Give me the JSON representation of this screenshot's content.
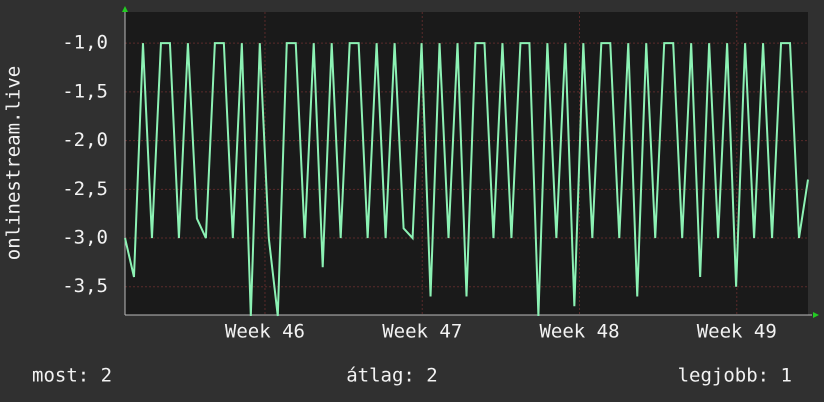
{
  "chart_data": {
    "type": "line",
    "y_label": "onlinestream.live",
    "x": [
      0,
      0.4,
      0.8,
      1.2,
      1.6,
      2,
      2.4,
      2.8,
      3.2,
      3.6,
      4,
      4.4,
      4.8,
      5.2,
      5.6,
      6,
      6.4,
      6.8,
      7.2,
      7.6,
      8,
      8.4,
      8.8,
      9.2,
      9.6,
      10,
      10.4,
      10.8,
      11.2,
      11.6,
      12,
      12.4,
      12.8,
      13.2,
      13.6,
      14,
      14.4,
      14.8,
      15.2,
      15.6,
      16,
      16.4,
      16.8,
      17.2,
      17.6,
      18,
      18.4,
      18.8,
      19.2,
      19.6,
      20,
      20.4,
      20.8,
      21.2,
      21.6,
      22,
      22.4,
      22.8,
      23.2,
      23.6,
      24,
      24.4,
      24.8,
      25.2,
      25.6,
      26,
      26.4,
      26.8,
      27.2,
      27.6,
      28,
      28.4,
      28.8,
      29.2,
      29.6,
      30,
      30.4
    ],
    "series": [
      {
        "color": "#8cf2b4",
        "values": [
          -3,
          -3.4,
          -1,
          -3,
          -1,
          -1,
          -3,
          -1,
          -2.8,
          -3,
          -1,
          -1,
          -3,
          -1,
          -3.8,
          -1,
          -3,
          -3.8,
          -1,
          -1,
          -3,
          -1,
          -3.3,
          -1,
          -3,
          -1,
          -1,
          -3,
          -1,
          -3,
          -1,
          -2.9,
          -3,
          -1,
          -3.6,
          -1,
          -3,
          -1,
          -3.6,
          -1,
          -1,
          -3,
          -1,
          -3,
          -1,
          -1,
          -3.8,
          -1,
          -3,
          -1,
          -3.7,
          -1,
          -3,
          -1,
          -1,
          -3,
          -1,
          -3.6,
          -1,
          -3,
          -1,
          -1,
          -3,
          -1,
          -3.4,
          -1,
          -3,
          -1,
          -3.5,
          -1,
          -3,
          -1,
          -3,
          -1,
          -1,
          -3,
          -2.4
        ]
      }
    ],
    "xlim": [
      0,
      30.4
    ],
    "xticks": [
      {
        "value": 6.23,
        "label": "Week 46"
      },
      {
        "value": 13.23,
        "label": "Week 47"
      },
      {
        "value": 20.23,
        "label": "Week 48"
      },
      {
        "value": 27.23,
        "label": "Week 49"
      }
    ],
    "ylim": [
      -3.79,
      -0.68
    ],
    "yticks": [
      {
        "value": -1,
        "label": "-1,0"
      },
      {
        "value": -1.5,
        "label": "-1,5"
      },
      {
        "value": -2,
        "label": "-2,0"
      },
      {
        "value": -2.5,
        "label": "-2,5"
      },
      {
        "value": -3,
        "label": "-3,0"
      },
      {
        "value": -3.5,
        "label": "-3,5"
      }
    ],
    "grid": true,
    "stats": [
      "most: 2",
      "átlag: 2",
      "legjobb: 1"
    ]
  }
}
